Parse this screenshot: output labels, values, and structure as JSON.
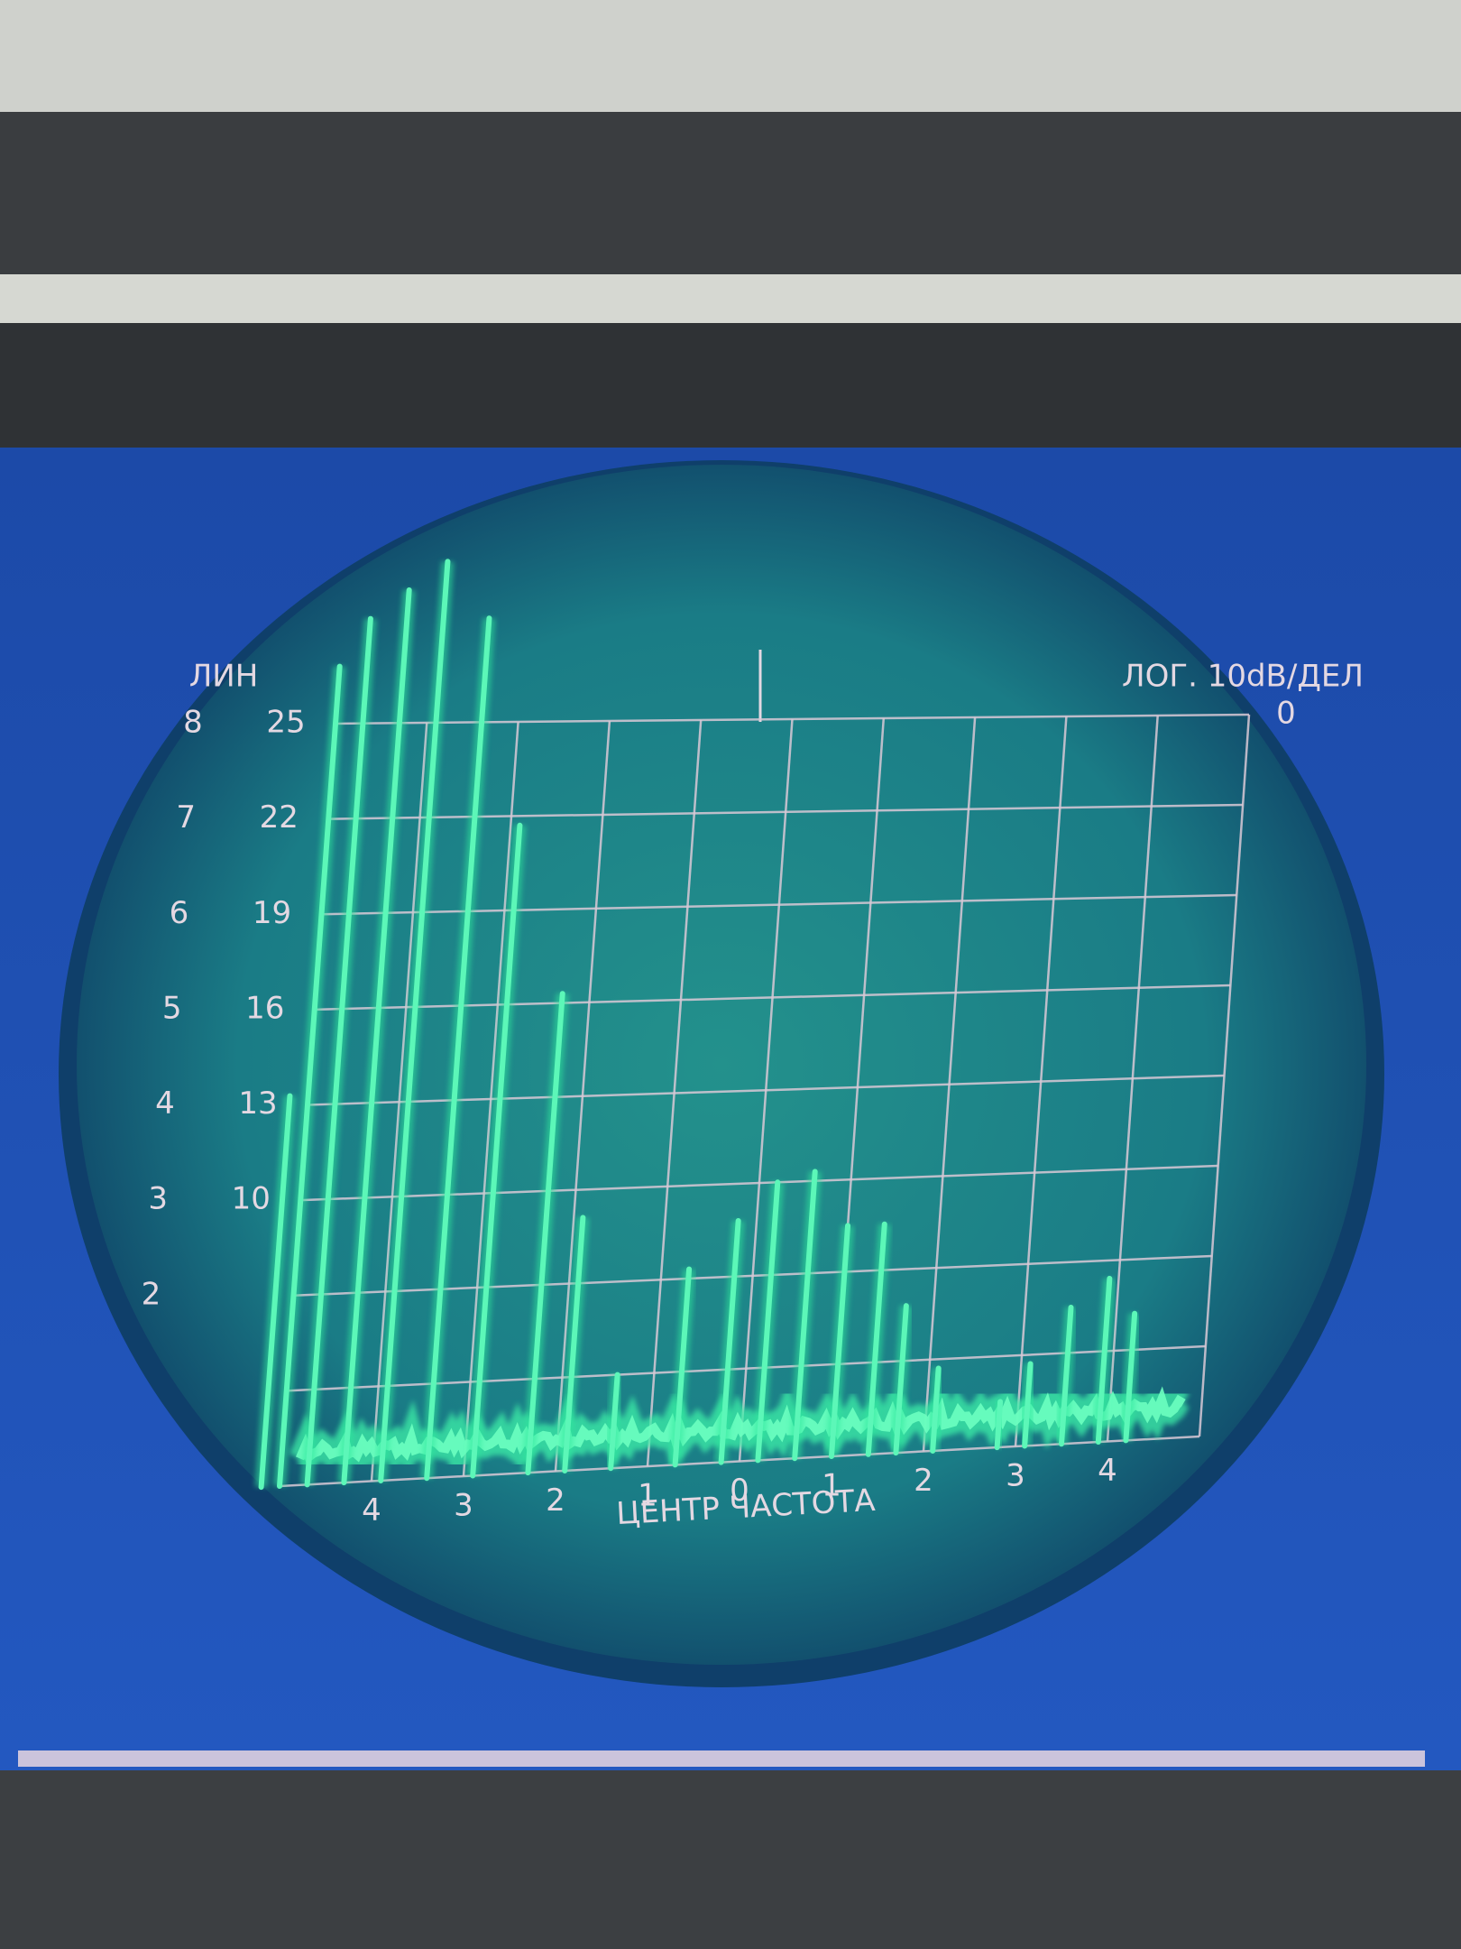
{
  "screen": {
    "left_mode": "ЛИН",
    "right_mode": "ЛОГ. 10dB/ДЕЛ",
    "ref_level": 0,
    "xlim": [
      -5,
      5
    ],
    "ylim": [
      0,
      8
    ],
    "lin_scale": [
      8,
      7,
      6,
      5,
      4,
      3,
      2
    ],
    "db_scale": [
      25,
      22,
      19,
      16,
      13,
      10
    ],
    "freq_scale": [
      {
        "value": -4,
        "label": "4"
      },
      {
        "value": -3,
        "label": "3"
      },
      {
        "value": -2,
        "label": "2"
      },
      {
        "value": -1,
        "label": "1"
      },
      0,
      1,
      2,
      3,
      4
    ],
    "freq_label": "ЦЕНТР ЧАСТОТА",
    "peaks": [
      {
        "position": -5.2,
        "level": 4.1
      },
      {
        "position": -5.0,
        "level": 8.6
      },
      {
        "position": -4.7,
        "level": 9.1
      },
      {
        "position": -4.3,
        "level": 9.4
      },
      {
        "position": -3.9,
        "level": 9.7
      },
      {
        "position": -3.4,
        "level": 9.1
      },
      {
        "position": -2.9,
        "level": 6.9
      },
      {
        "position": -2.3,
        "level": 5.1
      },
      {
        "position": -1.9,
        "level": 2.7
      },
      {
        "position": -1.4,
        "level": 1.0
      },
      {
        "position": -0.7,
        "level": 2.1
      },
      {
        "position": -0.2,
        "level": 2.6
      },
      {
        "position": 0.2,
        "level": 3.0
      },
      {
        "position": 0.6,
        "level": 3.1
      },
      {
        "position": 1.0,
        "level": 2.5
      },
      {
        "position": 1.4,
        "level": 2.5
      },
      {
        "position": 1.7,
        "level": 1.6
      },
      {
        "position": 2.1,
        "level": 0.9
      },
      {
        "position": 2.8,
        "level": 0.5
      },
      {
        "position": 3.1,
        "level": 0.9
      },
      {
        "position": 3.5,
        "level": 1.5
      },
      {
        "position": 3.9,
        "level": 1.8
      },
      {
        "position": 4.2,
        "level": 1.4
      }
    ]
  }
}
